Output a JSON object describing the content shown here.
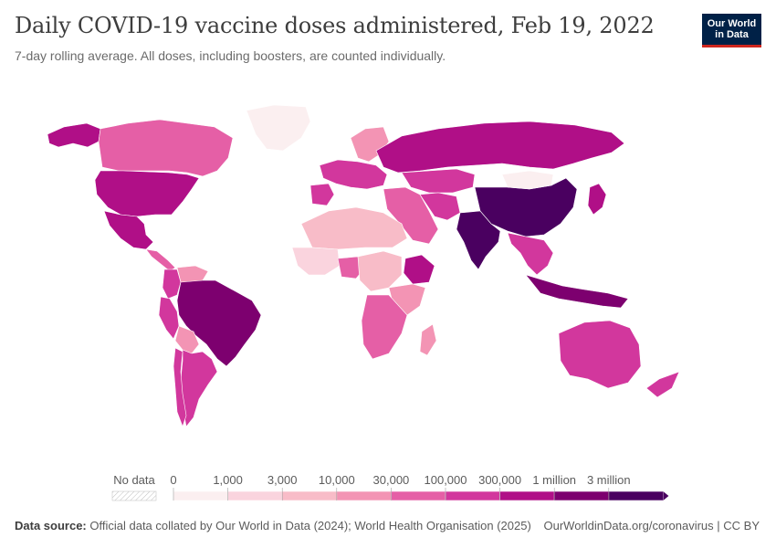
{
  "header": {
    "title": "Daily COVID-19 vaccine doses administered, Feb 19, 2022",
    "subtitle": "7-day rolling average. All doses, including boosters, are counted individually."
  },
  "logo": {
    "line1": "Our World",
    "line2": "in Data"
  },
  "legend": {
    "no_data_label": "No data",
    "ticks": [
      "0",
      "1,000",
      "3,000",
      "10,000",
      "30,000",
      "100,000",
      "300,000",
      "1 million",
      "3 million"
    ],
    "colors": [
      "#fbeff0",
      "#fad4de",
      "#f8bcc8",
      "#f394b4",
      "#e55fa6",
      "#d2379d",
      "#b00f87",
      "#7d006f",
      "#4a0060"
    ]
  },
  "footer": {
    "source_label": "Data source:",
    "source_text": "Official data collated by Our World in Data (2024); World Health Organisation (2025)",
    "url": "OurWorldinData.org/coronavirus | CC BY"
  },
  "map_regions": [
    {
      "name": "Alaska",
      "bin": 6
    },
    {
      "name": "Canada",
      "bin": 4
    },
    {
      "name": "United States",
      "bin": 6
    },
    {
      "name": "Mexico",
      "bin": 6
    },
    {
      "name": "Central America",
      "bin": 4
    },
    {
      "name": "Greenland",
      "bin": 0
    },
    {
      "name": "Colombia",
      "bin": 5
    },
    {
      "name": "Venezuela",
      "bin": 3
    },
    {
      "name": "Peru",
      "bin": 5
    },
    {
      "name": "Brazil",
      "bin": 7
    },
    {
      "name": "Bolivia",
      "bin": 3
    },
    {
      "name": "Argentina",
      "bin": 5
    },
    {
      "name": "Chile",
      "bin": 5
    },
    {
      "name": "Western Europe",
      "bin": 5
    },
    {
      "name": "Iberia",
      "bin": 5
    },
    {
      "name": "Scandinavia",
      "bin": 3
    },
    {
      "name": "Russia",
      "bin": 6
    },
    {
      "name": "Kazakhstan",
      "bin": 5
    },
    {
      "name": "Middle East",
      "bin": 4
    },
    {
      "name": "Iran",
      "bin": 5
    },
    {
      "name": "India",
      "bin": 8
    },
    {
      "name": "China",
      "bin": 8
    },
    {
      "name": "Mongolia",
      "bin": 0
    },
    {
      "name": "Southeast Asia",
      "bin": 5
    },
    {
      "name": "Indonesia",
      "bin": 7
    },
    {
      "name": "Japan",
      "bin": 6
    },
    {
      "name": "Australia",
      "bin": 5
    },
    {
      "name": "New Zealand",
      "bin": 5
    },
    {
      "name": "North Africa",
      "bin": 2
    },
    {
      "name": "West Africa",
      "bin": 1
    },
    {
      "name": "Nigeria",
      "bin": 4
    },
    {
      "name": "Ethiopia",
      "bin": 6
    },
    {
      "name": "Central Africa",
      "bin": 2
    },
    {
      "name": "East Africa",
      "bin": 3
    },
    {
      "name": "Southern Africa",
      "bin": 4
    },
    {
      "name": "Madagascar",
      "bin": 3
    }
  ]
}
